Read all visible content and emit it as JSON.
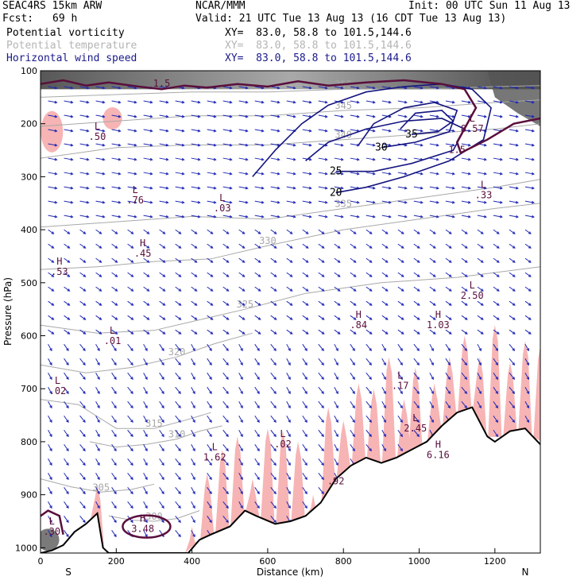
{
  "header": {
    "model": "SEAC4RS 15km ARW",
    "org": "NCAR/MMM",
    "init": "Init: 00 UTC Sun 11 Aug 13",
    "fcst_label": "Fcst:",
    "fcst_value": "69 h",
    "valid": "Valid: 21 UTC Tue 13 Aug 13 (16 CDT Tue 13 Aug 13)",
    "fields": [
      {
        "name": "Potential vorticity",
        "xy": "XY=  83.0, 58.8 to 101.5,144.6"
      },
      {
        "name": "Potential temperature",
        "xy": "XY=  83.0, 58.8 to 101.5,144.6"
      },
      {
        "name": "Horizontal wind speed",
        "xy": "XY=  83.0, 58.8 to 101.5,144.6"
      }
    ]
  },
  "colors": {
    "pv_contour": "#5a0f3c",
    "theta_contour": "#a8a8a8",
    "wind_contour": "#141480",
    "wind_vector": "#1e28b4",
    "pv_fill": "#f7b4b4",
    "terrain": "#000000"
  },
  "chart_data": {
    "type": "cross-section",
    "xlabel": "Distance (km)",
    "ylabel": "Pressure (hPa)",
    "x_ticks": [
      0,
      200,
      400,
      600,
      800,
      1000,
      1200
    ],
    "y_ticks": [
      100,
      200,
      300,
      400,
      500,
      600,
      700,
      800,
      900,
      1000
    ],
    "xlim": [
      0,
      1320
    ],
    "ylim": [
      1010,
      100
    ],
    "y_scale": "linear",
    "endpoints": {
      "left": "S",
      "right": "N"
    },
    "terrain": [
      [
        0,
        1010
      ],
      [
        30,
        1005
      ],
      [
        60,
        995
      ],
      [
        90,
        970
      ],
      [
        120,
        955
      ],
      [
        150,
        935
      ],
      [
        165,
        1000
      ],
      [
        180,
        1010
      ],
      [
        390,
        1010
      ],
      [
        420,
        985
      ],
      [
        450,
        975
      ],
      [
        500,
        960
      ],
      [
        540,
        930
      ],
      [
        570,
        940
      ],
      [
        620,
        955
      ],
      [
        660,
        950
      ],
      [
        700,
        940
      ],
      [
        740,
        915
      ],
      [
        780,
        870
      ],
      [
        820,
        845
      ],
      [
        860,
        830
      ],
      [
        900,
        840
      ],
      [
        940,
        830
      ],
      [
        980,
        815
      ],
      [
        1020,
        800
      ],
      [
        1060,
        770
      ],
      [
        1100,
        745
      ],
      [
        1140,
        735
      ],
      [
        1180,
        790
      ],
      [
        1200,
        800
      ],
      [
        1240,
        780
      ],
      [
        1280,
        775
      ],
      [
        1320,
        805
      ]
    ],
    "theta_contours": [
      {
        "label": "300",
        "points": [
          [
            180,
            940
          ],
          [
            240,
            948
          ],
          [
            300,
            950
          ],
          [
            360,
            945
          ],
          [
            420,
            930
          ]
        ]
      },
      {
        "label": "305",
        "points": [
          [
            0,
            870
          ],
          [
            80,
            885
          ],
          [
            160,
            895
          ],
          [
            240,
            890
          ],
          [
            300,
            880
          ]
        ]
      },
      {
        "label": "310",
        "points": [
          [
            130,
            800
          ],
          [
            200,
            810
          ],
          [
            280,
            805
          ],
          [
            360,
            795
          ],
          [
            420,
            780
          ],
          [
            480,
            770
          ]
        ]
      },
      {
        "label": "315",
        "points": [
          [
            0,
            720
          ],
          [
            100,
            730
          ],
          [
            200,
            775
          ],
          [
            300,
            775
          ],
          [
            380,
            760
          ],
          [
            450,
            745
          ]
        ]
      },
      {
        "label": "320",
        "points": [
          [
            0,
            655
          ],
          [
            120,
            670
          ],
          [
            240,
            660
          ],
          [
            360,
            640
          ],
          [
            460,
            615
          ],
          [
            560,
            595
          ]
        ]
      },
      {
        "label": "325",
        "points": [
          [
            0,
            580
          ],
          [
            150,
            595
          ],
          [
            300,
            590
          ],
          [
            420,
            570
          ],
          [
            540,
            550
          ],
          [
            700,
            520
          ],
          [
            900,
            500
          ],
          [
            1100,
            490
          ],
          [
            1320,
            470
          ]
        ]
      },
      {
        "label": "330",
        "points": [
          [
            0,
            475
          ],
          [
            150,
            470
          ],
          [
            300,
            460
          ],
          [
            450,
            455
          ],
          [
            600,
            430
          ],
          [
            800,
            400
          ],
          [
            1000,
            380
          ],
          [
            1200,
            360
          ],
          [
            1320,
            350
          ]
        ]
      },
      {
        "label": "335",
        "points": [
          [
            0,
            395
          ],
          [
            200,
            385
          ],
          [
            400,
            375
          ],
          [
            600,
            380
          ],
          [
            800,
            360
          ],
          [
            1000,
            340
          ],
          [
            1200,
            320
          ],
          [
            1320,
            305
          ]
        ]
      },
      {
        "label": "340",
        "points": [
          [
            0,
            265
          ],
          [
            200,
            245
          ],
          [
            400,
            240
          ],
          [
            600,
            240
          ],
          [
            800,
            230
          ],
          [
            1000,
            220
          ],
          [
            1200,
            210
          ],
          [
            1320,
            200
          ]
        ]
      },
      {
        "label": "345",
        "points": [
          [
            0,
            205
          ],
          [
            200,
            195
          ],
          [
            400,
            185
          ],
          [
            600,
            185
          ],
          [
            800,
            175
          ],
          [
            1000,
            170
          ],
          [
            1200,
            160
          ],
          [
            1320,
            155
          ]
        ]
      },
      {
        "label": "355",
        "points": [
          [
            0,
            150
          ],
          [
            200,
            145
          ],
          [
            400,
            140
          ],
          [
            600,
            140
          ],
          [
            800,
            135
          ],
          [
            1000,
            135
          ],
          [
            1200,
            130
          ],
          [
            1320,
            128
          ]
        ]
      }
    ],
    "wind_contours": [
      {
        "label": "20",
        "points": [
          [
            560,
            300
          ],
          [
            620,
            250
          ],
          [
            690,
            200
          ],
          [
            760,
            165
          ],
          [
            860,
            140
          ],
          [
            960,
            130
          ],
          [
            1060,
            125
          ],
          [
            1140,
            135
          ],
          [
            1190,
            170
          ],
          [
            1170,
            230
          ],
          [
            1080,
            270
          ],
          [
            960,
            300
          ],
          [
            860,
            320
          ],
          [
            780,
            330
          ]
        ]
      },
      {
        "label": "25",
        "points": [
          [
            700,
            270
          ],
          [
            760,
            235
          ],
          [
            860,
            210
          ],
          [
            960,
            195
          ],
          [
            1060,
            190
          ],
          [
            1120,
            210
          ],
          [
            1090,
            250
          ],
          [
            980,
            275
          ],
          [
            880,
            290
          ],
          [
            780,
            290
          ]
        ]
      },
      {
        "label": "30",
        "points": [
          [
            840,
            240
          ],
          [
            880,
            200
          ],
          [
            960,
            170
          ],
          [
            1040,
            160
          ],
          [
            1100,
            175
          ],
          [
            1080,
            215
          ],
          [
            990,
            235
          ],
          [
            900,
            245
          ]
        ]
      },
      {
        "label": "35",
        "points": [
          [
            950,
            210
          ],
          [
            990,
            180
          ],
          [
            1060,
            175
          ],
          [
            1090,
            195
          ],
          [
            1050,
            215
          ],
          [
            980,
            220
          ]
        ]
      }
    ],
    "pv_labels": [
      {
        "text": "1.5",
        "x": 320,
        "p": 130
      },
      {
        "text": "1.5",
        "x": 1100,
        "p": 255
      },
      {
        "text": "L .50",
        "x": 150,
        "p": 220
      },
      {
        "text": "L .76",
        "x": 250,
        "p": 340
      },
      {
        "text": "L .03",
        "x": 480,
        "p": 355
      },
      {
        "text": "H .45",
        "x": 270,
        "p": 440
      },
      {
        "text": "H .53",
        "x": 50,
        "p": 475
      },
      {
        "text": "L .01",
        "x": 190,
        "p": 605
      },
      {
        "text": "L .02",
        "x": 45,
        "p": 700
      },
      {
        "text": "L 1.62",
        "x": 460,
        "p": 825
      },
      {
        "text": "L .02",
        "x": 640,
        "p": 800
      },
      {
        "text": "H .84",
        "x": 840,
        "p": 575
      },
      {
        "text": "H 1.03",
        "x": 1050,
        "p": 575
      },
      {
        "text": "L 2.50",
        "x": 1140,
        "p": 520
      },
      {
        "text": "L .17",
        "x": 950,
        "p": 690
      },
      {
        "text": "L 2.45",
        "x": 990,
        "p": 770
      },
      {
        "text": "H 6.16",
        "x": 1050,
        "p": 820
      },
      {
        "text": "L 8.57",
        "x": 1140,
        "p": 205
      },
      {
        "text": "L .33",
        "x": 1170,
        "p": 330
      },
      {
        "text": "H 3.48",
        "x": 270,
        "p": 960
      },
      {
        "text": "L .30",
        "x": 30,
        "p": 965
      },
      {
        "text": ".92",
        "x": 780,
        "p": 880
      }
    ]
  }
}
